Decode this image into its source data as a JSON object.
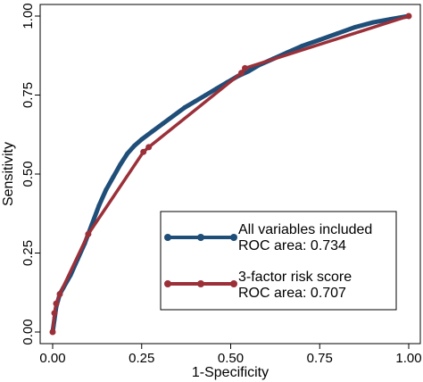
{
  "chart_data": {
    "type": "line",
    "title": "",
    "xlabel": "1-Specificity",
    "ylabel": "Sensitivity",
    "xlim": [
      0,
      1
    ],
    "ylim": [
      0,
      1
    ],
    "xticks": [
      "0.00",
      "0.25",
      "0.50",
      "0.75",
      "1.00"
    ],
    "yticks": [
      "0.00",
      "0.25",
      "0.50",
      "0.75",
      "1.00"
    ],
    "grid": false,
    "legend_placement": "bottom-right",
    "series": [
      {
        "name": "All variables included",
        "subtitle": "ROC area: 0.734",
        "color": "#1f4e79",
        "x": [
          0,
          0.005,
          0.01,
          0.02,
          0.03,
          0.05,
          0.07,
          0.09,
          0.11,
          0.13,
          0.15,
          0.17,
          0.19,
          0.21,
          0.23,
          0.25,
          0.28,
          0.31,
          0.34,
          0.37,
          0.4,
          0.43,
          0.46,
          0.49,
          0.52,
          0.55,
          0.58,
          0.62,
          0.66,
          0.7,
          0.75,
          0.8,
          0.85,
          0.9,
          0.95,
          1.0
        ],
        "y": [
          0,
          0.04,
          0.08,
          0.12,
          0.14,
          0.18,
          0.23,
          0.28,
          0.34,
          0.4,
          0.45,
          0.49,
          0.53,
          0.565,
          0.59,
          0.61,
          0.635,
          0.66,
          0.685,
          0.71,
          0.73,
          0.75,
          0.77,
          0.79,
          0.81,
          0.825,
          0.845,
          0.865,
          0.885,
          0.905,
          0.925,
          0.945,
          0.965,
          0.98,
          0.99,
          1.0
        ]
      },
      {
        "name": "3-factor risk score",
        "subtitle": "ROC area: 0.707",
        "color": "#9b3039",
        "x": [
          0,
          0.005,
          0.01,
          0.02,
          0.1,
          0.255,
          0.27,
          0.53,
          0.54,
          1.0
        ],
        "y": [
          0,
          0.06,
          0.09,
          0.12,
          0.31,
          0.57,
          0.585,
          0.82,
          0.835,
          1.0
        ]
      }
    ]
  }
}
